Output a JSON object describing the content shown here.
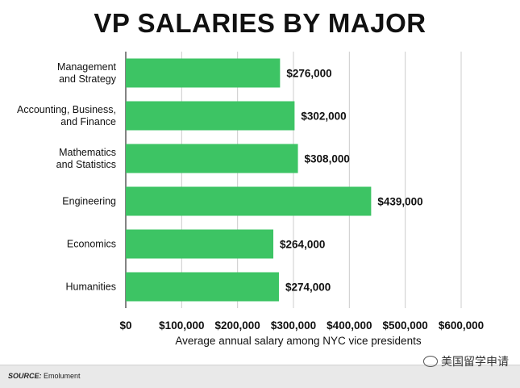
{
  "chart_data": {
    "type": "bar",
    "orientation": "horizontal",
    "title": "VP SALARIES BY MAJOR",
    "xlabel": "Average annual salary among NYC vice presidents",
    "ylabel": "",
    "categories": [
      [
        "Management",
        "and Strategy"
      ],
      [
        "Accounting, Business,",
        "and Finance"
      ],
      [
        "Mathematics",
        "and Statistics"
      ],
      [
        "Engineering"
      ],
      [
        "Economics"
      ],
      [
        "Humanities"
      ]
    ],
    "values": [
      276000,
      302000,
      308000,
      439000,
      264000,
      274000
    ],
    "value_labels": [
      "$276,000",
      "$302,000",
      "$308,000",
      "$439,000",
      "$264,000",
      "$274,000"
    ],
    "xlim": [
      0,
      600000
    ],
    "xticks": [
      0,
      100000,
      200000,
      300000,
      400000,
      500000,
      600000
    ],
    "xtick_labels": [
      "$0",
      "$100,000",
      "$200,000",
      "$300,000",
      "$400,000",
      "$500,000",
      "$600,000"
    ],
    "grid": "vertical",
    "bar_color": "#3dc464"
  },
  "footer": {
    "source_key": "SOURCE:",
    "source_value": "Emolument"
  },
  "watermark": "美国留学申请"
}
